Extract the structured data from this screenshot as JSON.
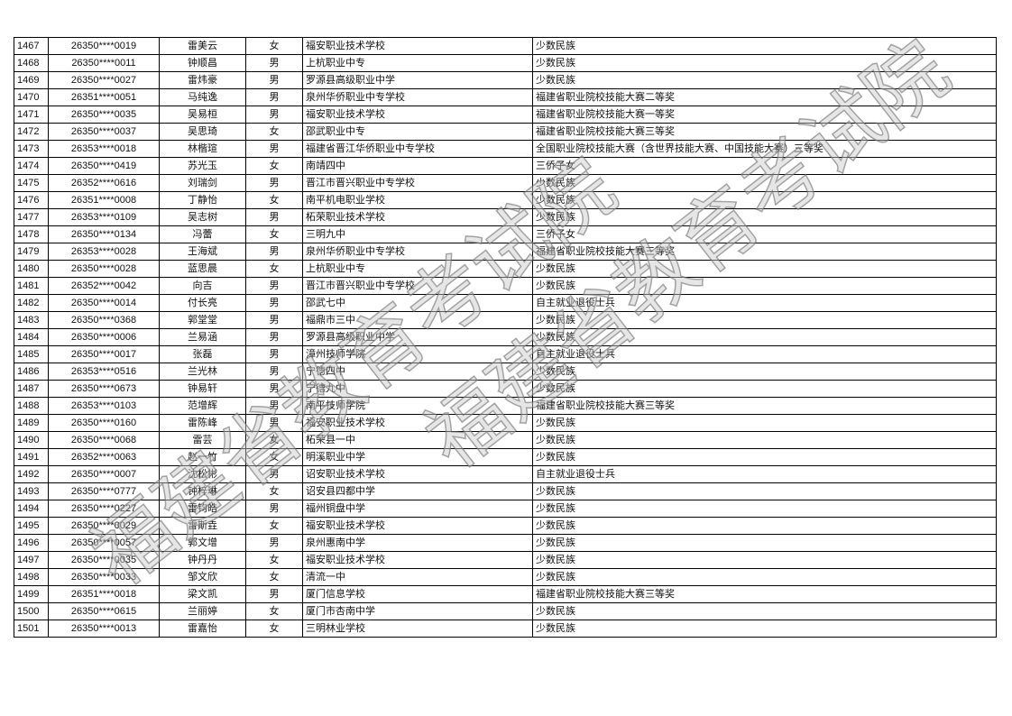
{
  "watermark": {
    "text": "福建省教育考试院"
  },
  "rows": [
    [
      "1467",
      "26350****0019",
      "雷美云",
      "女",
      "福安职业技术学校",
      "少数民族"
    ],
    [
      "1468",
      "26350****0011",
      "钟顺昌",
      "男",
      "上杭职业中专",
      "少数民族"
    ],
    [
      "1469",
      "26350****0027",
      "雷炜豪",
      "男",
      "罗源县高级职业中学",
      "少数民族"
    ],
    [
      "1470",
      "26351****0051",
      "马纯逸",
      "男",
      "泉州华侨职业中专学校",
      "福建省职业院校技能大赛二等奖"
    ],
    [
      "1471",
      "26350****0035",
      "吴易桓",
      "男",
      "福安职业技术学校",
      "福建省职业院校技能大赛一等奖"
    ],
    [
      "1472",
      "26350****0037",
      "吴思琦",
      "女",
      "邵武职业中专",
      "福建省职业院校技能大赛三等奖"
    ],
    [
      "1473",
      "26353****0018",
      "林楷瑄",
      "男",
      "福建省晋江华侨职业中专学校",
      "全国职业院校技能大赛（含世界技能大赛、中国技能大赛）三等奖"
    ],
    [
      "1474",
      "26350****0419",
      "苏光玉",
      "女",
      "南靖四中",
      "三侨子女"
    ],
    [
      "1475",
      "26352****0616",
      "刘瑞剑",
      "男",
      "晋江市晋兴职业中专学校",
      "少数民族"
    ],
    [
      "1476",
      "26351****0008",
      "丁静怡",
      "女",
      "南平机电职业学校",
      "少数民族"
    ],
    [
      "1477",
      "26353****0109",
      "吴志树",
      "男",
      "柘荣职业技术学校",
      "少数民族"
    ],
    [
      "1478",
      "26350****0134",
      "冯蕾",
      "女",
      "三明九中",
      "三侨子女"
    ],
    [
      "1479",
      "26353****0028",
      "王海斌",
      "男",
      "泉州华侨职业中专学校",
      "福建省职业院校技能大赛三等奖"
    ],
    [
      "1480",
      "26350****0028",
      "蓝思晨",
      "女",
      "上杭职业中专",
      "少数民族"
    ],
    [
      "1481",
      "26352****0042",
      "向吉",
      "男",
      "晋江市晋兴职业中专学校",
      "少数民族"
    ],
    [
      "1482",
      "26350****0014",
      "付长亮",
      "男",
      "邵武七中",
      "自主就业退役士兵"
    ],
    [
      "1483",
      "26350****0368",
      "郭堂堂",
      "男",
      "福鼎市三中",
      "少数民族"
    ],
    [
      "1484",
      "26350****0006",
      "兰易涵",
      "男",
      "罗源县高级职业中学",
      "少数民族"
    ],
    [
      "1485",
      "26350****0017",
      "张磊",
      "男",
      "漳州技师学院",
      "自主就业退役士兵"
    ],
    [
      "1486",
      "26353****0516",
      "兰光林",
      "男",
      "宁德四中",
      "少数民族"
    ],
    [
      "1487",
      "26350****0673",
      "钟易轩",
      "男",
      "宁德九中",
      "少数民族"
    ],
    [
      "1488",
      "26353****0103",
      "范增辉",
      "男",
      "南平技师学院",
      "福建省职业院校技能大赛三等奖"
    ],
    [
      "1489",
      "26350****0160",
      "雷陈峰",
      "男",
      "福安职业技术学校",
      "少数民族"
    ],
    [
      "1490",
      "26350****0068",
      "雷芸",
      "女",
      "柘荣县一中",
      "少数民族"
    ],
    [
      "1491",
      "26352****0063",
      "赵一竹",
      "女",
      "明溪职业中学",
      "少数民族"
    ],
    [
      "1492",
      "26350****0007",
      "沈松彬",
      "男",
      "诏安职业技术学校",
      "自主就业退役士兵"
    ],
    [
      "1493",
      "26350****0777",
      "钟梓琳",
      "女",
      "诏安县四都中学",
      "少数民族"
    ],
    [
      "1494",
      "26350****0227",
      "雷钧皓",
      "男",
      "福州铜盘中学",
      "少数民族"
    ],
    [
      "1495",
      "26350****0029",
      "雷斯垚",
      "女",
      "福安职业技术学校",
      "少数民族"
    ],
    [
      "1496",
      "26350****0057",
      "郭文增",
      "男",
      "泉州惠南中学",
      "少数民族"
    ],
    [
      "1497",
      "26350****0035",
      "钟丹丹",
      "女",
      "福安职业技术学校",
      "少数民族"
    ],
    [
      "1498",
      "26350****0033",
      "邹文欣",
      "女",
      "清流一中",
      "少数民族"
    ],
    [
      "1499",
      "26351****0018",
      "梁文凯",
      "男",
      "厦门信息学校",
      "福建省职业院校技能大赛三等奖"
    ],
    [
      "1500",
      "26350****0615",
      "兰丽婷",
      "女",
      "厦门市杏南中学",
      "少数民族"
    ],
    [
      "1501",
      "26350****0013",
      "雷嘉怡",
      "女",
      "三明林业学校",
      "少数民族"
    ]
  ]
}
